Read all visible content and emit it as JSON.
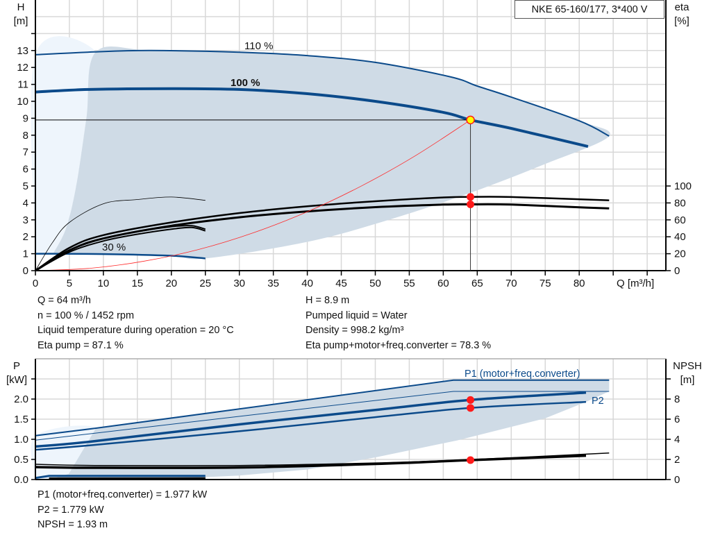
{
  "title": "NKE 65-160/177, 3*400 V",
  "colors": {
    "curve": "#0b4a8a",
    "shade": "#cfdbe6",
    "shade_light": "#eef5fc",
    "grid": "#d8d8d8",
    "system_curve": "#ff2a2a",
    "point": "#ff1a1a",
    "duty_point_fill": "#ffff00"
  },
  "info_top": {
    "left": [
      "Q = 64 m³/h",
      "n = 100 % / 1452 rpm",
      "Liquid temperature during operation = 20 °C",
      "Eta pump = 87.1 %"
    ],
    "right": [
      "H = 8.9 m",
      "Pumped liquid = Water",
      "Density = 998.2 kg/m³",
      "Eta pump+motor+freq.converter = 78.3 %"
    ]
  },
  "info_bottom": [
    "P1 (motor+freq.converter) = 1.977 kW",
    "P2 = 1.779 kW",
    "NPSH = 1.93 m"
  ],
  "chart_data": [
    {
      "type": "line",
      "title": "NKE 65-160/177, 3*400 V",
      "xlabel": "Q [m³/h]",
      "ylabel_line1": "H",
      "ylabel_line2": "[m]",
      "y2label_line1": "eta",
      "y2label_line2": "[%]",
      "xlim": [
        0,
        93
      ],
      "ylim": [
        0,
        16
      ],
      "y2lim": [
        0,
        320
      ],
      "xticks": [
        0,
        5,
        10,
        15,
        20,
        25,
        30,
        35,
        40,
        45,
        50,
        55,
        60,
        65,
        70,
        75,
        80
      ],
      "yticks": [
        0,
        1,
        2,
        3,
        4,
        5,
        6,
        7,
        8,
        9,
        10,
        11,
        12,
        13
      ],
      "y2ticks": [
        0,
        20,
        40,
        60,
        80,
        100
      ],
      "grid": true,
      "curve_labels": [
        "110 %",
        "100 %",
        "30 %"
      ],
      "series": [
        {
          "name": "110 %",
          "axis": "H",
          "x": [
            0,
            8.7,
            17,
            30,
            40,
            50,
            61,
            65,
            70,
            80,
            84.4
          ],
          "y": [
            12.75,
            12.92,
            13.0,
            12.9,
            12.7,
            12.3,
            11.45,
            10.9,
            10.25,
            8.85,
            7.95
          ]
        },
        {
          "name": "100 %",
          "axis": "H",
          "x": [
            0,
            8,
            20,
            30,
            40,
            50,
            60,
            64,
            70,
            81.3
          ],
          "y": [
            10.55,
            10.7,
            10.75,
            10.7,
            10.45,
            10.0,
            9.35,
            8.9,
            8.4,
            7.33
          ]
        },
        {
          "name": "30 %",
          "axis": "H",
          "x": [
            0,
            10,
            20,
            25
          ],
          "y": [
            1.0,
            0.98,
            0.88,
            0.72
          ]
        },
        {
          "axis": "eta",
          "x": [
            0,
            5,
            10,
            20,
            30,
            40,
            50,
            60,
            64,
            70,
            81,
            84.4
          ],
          "y": [
            0,
            27,
            42,
            57,
            68,
            76,
            82,
            86.5,
            87.1,
            87,
            84,
            83
          ]
        },
        {
          "axis": "eta",
          "x": [
            0,
            5,
            10,
            20,
            30,
            40,
            50,
            60,
            64,
            70,
            81,
            84.4
          ],
          "y": [
            0,
            24,
            38,
            53,
            63,
            70,
            75,
            78,
            78.3,
            78,
            74.5,
            73.5
          ]
        },
        {
          "axis": "eta",
          "x": [
            0,
            2.5,
            5,
            10,
            15,
            20,
            25
          ],
          "y": [
            0,
            33,
            57,
            79,
            84,
            87,
            83
          ]
        },
        {
          "axis": "eta",
          "x": [
            0,
            5,
            10,
            15,
            20,
            23,
            25
          ],
          "y": [
            0,
            24,
            38,
            46,
            52,
            53,
            49
          ]
        },
        {
          "axis": "eta",
          "x": [
            0,
            5,
            10,
            15,
            20,
            23,
            25
          ],
          "y": [
            0,
            22,
            35,
            43,
            49,
            51,
            47
          ]
        },
        {
          "axis": "H",
          "x": [
            0,
            8,
            16,
            24,
            32,
            40,
            48,
            56,
            64
          ],
          "y": [
            0,
            0.14,
            0.56,
            1.25,
            2.23,
            3.48,
            5.01,
            6.81,
            8.9
          ]
        }
      ],
      "operating_range": {
        "x": [
          2.6,
          4.5,
          6,
          7.5,
          8.9,
          17,
          30,
          40,
          50,
          61,
          65,
          70,
          80,
          84.4,
          75,
          64,
          52,
          40,
          25,
          20,
          10,
          2.6
        ],
        "y": [
          1.0,
          2.5,
          5,
          9,
          12.92,
          13.0,
          12.9,
          12.7,
          12.3,
          11.45,
          10.9,
          10.25,
          8.85,
          7.95,
          6.3,
          4.6,
          3.0,
          1.7,
          0.72,
          0.88,
          0.98,
          1.0
        ]
      },
      "operating_range_low": {
        "x": [
          0,
          0,
          8.9,
          7.5,
          6,
          4.5,
          2.6
        ],
        "y": [
          1.0,
          12.75,
          12.92,
          9,
          5,
          2.5,
          1.0
        ]
      },
      "duty_point": {
        "Q": 64,
        "H": 8.9,
        "eta_pump": 87.1,
        "eta_total": 78.3
      }
    },
    {
      "type": "line",
      "xlabel": "",
      "ylabel_line1": "P",
      "ylabel_line2": "[kW]",
      "y2label_line1": "NPSH",
      "y2label_line2": "[m]",
      "xlim": [
        0,
        93
      ],
      "ylim": [
        0,
        3.0
      ],
      "y2lim": [
        0,
        12
      ],
      "yticks": [
        "0.0",
        "0.5",
        "1.0",
        "1.5",
        "2.0"
      ],
      "y2ticks": [
        0,
        2,
        4,
        6,
        8
      ],
      "grid": true,
      "curve_labels": [
        "P1 (motor+freq.converter)",
        "P2"
      ],
      "series": [
        {
          "axis": "P",
          "x": [
            0,
            8.7,
            61.5,
            84.4
          ],
          "y": [
            1.09,
            1.27,
            2.47,
            2.47
          ]
        },
        {
          "axis": "P",
          "x": [
            0,
            61.5,
            84.4
          ],
          "y": [
            0.98,
            2.19,
            2.19
          ]
        },
        {
          "name": "P1 (motor+freq.converter)",
          "axis": "P",
          "x": [
            0,
            8,
            30,
            50,
            64,
            81
          ],
          "y": [
            0.82,
            0.94,
            1.37,
            1.73,
            1.977,
            2.16
          ]
        },
        {
          "name": "P2",
          "axis": "P",
          "x": [
            0,
            8,
            30,
            50,
            64,
            81
          ],
          "y": [
            0.74,
            0.85,
            1.2,
            1.55,
            1.779,
            1.93
          ]
        },
        {
          "axis": "NPSH",
          "x": [
            0,
            8.7,
            30,
            50,
            64,
            84.4
          ],
          "y": [
            1.52,
            1.4,
            1.4,
            1.65,
            1.98,
            2.64
          ]
        },
        {
          "axis": "NPSH",
          "x": [
            0,
            8,
            30,
            50,
            64,
            81
          ],
          "y": [
            1.24,
            1.17,
            1.2,
            1.55,
            1.93,
            2.37
          ]
        },
        {
          "axis": "P",
          "x": [
            0,
            2,
            25
          ],
          "y": [
            0.04,
            0.09,
            0.09
          ]
        },
        {
          "axis": "NPSH",
          "x": [
            2,
            25
          ],
          "y": [
            0.1,
            0.12
          ]
        }
      ],
      "operating_range": {
        "x": [
          2,
          4.9,
          8.9,
          61.5,
          84.4,
          84.4,
          81,
          75,
          62,
          50,
          40,
          30,
          20,
          10,
          2
        ],
        "y": [
          0,
          0.14,
          1.27,
          2.47,
          2.47,
          2.19,
          1.93,
          1.52,
          0.97,
          0.55,
          0.25,
          0.1,
          0.02,
          0,
          0
        ]
      },
      "operating_range_low": {
        "x": [
          0,
          0,
          8.9,
          4.9,
          2
        ],
        "y": [
          0,
          1.09,
          1.27,
          0.14,
          0
        ]
      },
      "duty_point": {
        "Q": 64,
        "P1": 1.977,
        "P2": 1.779,
        "NPSH": 1.93
      }
    }
  ]
}
